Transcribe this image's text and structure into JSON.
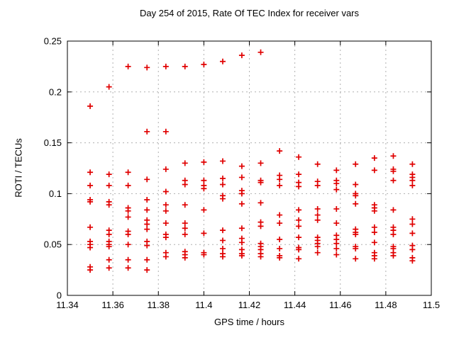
{
  "chart_data": {
    "type": "scatter",
    "title": "Day 254 of 2015, Rate Of TEC Index for receiver vars",
    "xlabel": "GPS time / hours",
    "ylabel": "ROTI / TECUs",
    "xlim": [
      11.34,
      11.5
    ],
    "ylim": [
      0,
      0.25
    ],
    "grid": true,
    "legend_position": "none",
    "marker": "plus",
    "marker_color": "#e00000",
    "grid_color": "#b0b0b0",
    "axis_color": "#000000",
    "x_ticks": {
      "values": [
        11.34,
        11.36,
        11.38,
        11.4,
        11.42,
        11.44,
        11.46,
        11.48,
        11.5
      ],
      "labels": [
        "11.34",
        "11.36",
        "11.38",
        "11.4",
        "11.42",
        "11.44",
        "11.46",
        "11.48",
        "11.5"
      ]
    },
    "y_ticks": {
      "values": [
        0,
        0.05,
        0.1,
        0.15,
        0.2,
        0.25
      ],
      "labels": [
        "0",
        "0.05",
        "0.1",
        "0.15",
        "0.2",
        "0.25"
      ]
    },
    "series": [
      {
        "name": "receiver vars ROTI",
        "columns": [
          {
            "x": 11.35,
            "y": [
              0.186,
              0.121,
              0.108,
              0.094,
              0.092,
              0.067,
              0.053,
              0.05,
              0.047,
              0.028,
              0.025
            ]
          },
          {
            "x": 11.3583,
            "y": [
              0.205,
              0.119,
              0.108,
              0.092,
              0.089,
              0.064,
              0.06,
              0.053,
              0.05,
              0.048,
              0.035,
              0.027
            ]
          },
          {
            "x": 11.3667,
            "y": [
              0.225,
              0.121,
              0.108,
              0.086,
              0.083,
              0.077,
              0.063,
              0.06,
              0.05,
              0.035,
              0.027
            ]
          },
          {
            "x": 11.375,
            "y": [
              0.224,
              0.161,
              0.114,
              0.094,
              0.084,
              0.074,
              0.07,
              0.065,
              0.053,
              0.049,
              0.035,
              0.025
            ]
          },
          {
            "x": 11.3833,
            "y": [
              0.225,
              0.161,
              0.124,
              0.102,
              0.089,
              0.083,
              0.071,
              0.06,
              0.057,
              0.042,
              0.038
            ]
          },
          {
            "x": 11.3917,
            "y": [
              0.225,
              0.13,
              0.113,
              0.109,
              0.089,
              0.071,
              0.066,
              0.06,
              0.043,
              0.04,
              0.037
            ]
          },
          {
            "x": 11.4,
            "y": [
              0.227,
              0.131,
              0.113,
              0.108,
              0.105,
              0.084,
              0.061,
              0.042,
              0.04
            ]
          },
          {
            "x": 11.4083,
            "y": [
              0.23,
              0.132,
              0.115,
              0.109,
              0.098,
              0.095,
              0.064,
              0.054,
              0.046,
              0.041,
              0.038
            ]
          },
          {
            "x": 11.4167,
            "y": [
              0.236,
              0.127,
              0.116,
              0.103,
              0.1,
              0.09,
              0.066,
              0.056,
              0.052,
              0.045,
              0.041,
              0.039
            ]
          },
          {
            "x": 11.425,
            "y": [
              0.239,
              0.13,
              0.113,
              0.111,
              0.091,
              0.072,
              0.068,
              0.051,
              0.048,
              0.045,
              0.041,
              0.038
            ]
          },
          {
            "x": 11.4333,
            "y": [
              0.142,
              0.118,
              0.114,
              0.108,
              0.079,
              0.071,
              0.055,
              0.046,
              0.039,
              0.037
            ]
          },
          {
            "x": 11.4417,
            "y": [
              0.136,
              0.119,
              0.111,
              0.107,
              0.084,
              0.074,
              0.068,
              0.057,
              0.047,
              0.045,
              0.036
            ]
          },
          {
            "x": 11.45,
            "y": [
              0.129,
              0.112,
              0.108,
              0.085,
              0.079,
              0.074,
              0.057,
              0.054,
              0.051,
              0.048,
              0.042
            ]
          },
          {
            "x": 11.4583,
            "y": [
              0.123,
              0.113,
              0.11,
              0.104,
              0.085,
              0.071,
              0.059,
              0.055,
              0.051,
              0.046,
              0.04
            ]
          },
          {
            "x": 11.4667,
            "y": [
              0.129,
              0.109,
              0.1,
              0.098,
              0.09,
              0.065,
              0.062,
              0.06,
              0.048,
              0.046,
              0.036
            ]
          },
          {
            "x": 11.475,
            "y": [
              0.135,
              0.123,
              0.089,
              0.086,
              0.083,
              0.067,
              0.062,
              0.052,
              0.042,
              0.039,
              0.036
            ]
          },
          {
            "x": 11.4833,
            "y": [
              0.137,
              0.124,
              0.122,
              0.113,
              0.084,
              0.067,
              0.064,
              0.06,
              0.048,
              0.046,
              0.042,
              0.039
            ]
          },
          {
            "x": 11.4917,
            "y": [
              0.129,
              0.119,
              0.116,
              0.113,
              0.108,
              0.075,
              0.07,
              0.061,
              0.049,
              0.045,
              0.037,
              0.034
            ]
          }
        ]
      }
    ]
  }
}
